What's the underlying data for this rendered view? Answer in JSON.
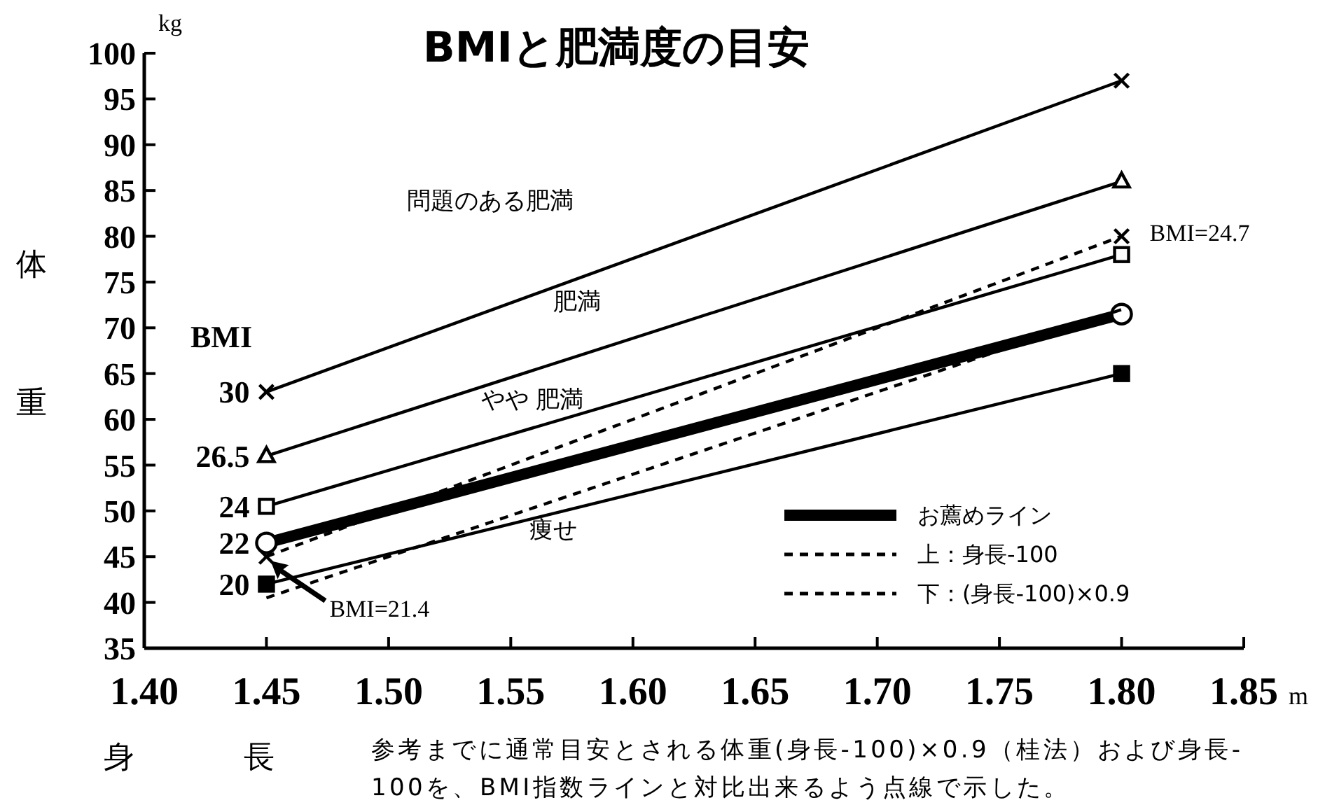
{
  "chart_data": {
    "type": "line",
    "title": "BMIと肥満度の目安",
    "xlabel": "身長",
    "ylabel": "体重",
    "x": [
      1.45,
      1.8
    ],
    "xlim": [
      1.4,
      1.85
    ],
    "xticks": [
      {
        "value": 1.4,
        "label": "1.40"
      },
      {
        "value": 1.45,
        "label": "1.45"
      },
      {
        "value": 1.5,
        "label": "1.50"
      },
      {
        "value": 1.55,
        "label": "1.55"
      },
      {
        "value": 1.6,
        "label": "1.60"
      },
      {
        "value": 1.65,
        "label": "1.65"
      },
      {
        "value": 1.7,
        "label": "1.70"
      },
      {
        "value": 1.75,
        "label": "1.75"
      },
      {
        "value": 1.8,
        "label": "1.80"
      },
      {
        "value": 1.85,
        "label": "1.85"
      }
    ],
    "ylim": [
      35,
      100
    ],
    "yticks": [
      35,
      40,
      45,
      50,
      55,
      60,
      65,
      70,
      75,
      80,
      85,
      90,
      95,
      100
    ],
    "grid": false,
    "legend": "bottom right",
    "series": [
      {
        "name": "30",
        "color": "#000000",
        "values": [
          63,
          97
        ],
        "marker": "cross",
        "line_style": "solid"
      },
      {
        "name": "26.5",
        "color": "#000000",
        "values": [
          56,
          86
        ],
        "marker": "triangle",
        "line_style": "solid"
      },
      {
        "name": "24",
        "color": "#000000",
        "values": [
          50.5,
          78
        ],
        "marker": "square",
        "line_style": "solid"
      },
      {
        "name": "お薦めライン",
        "color": "#000000",
        "values": [
          46.5,
          71.5
        ],
        "marker": "circle",
        "line_style": "solid"
      },
      {
        "name": "20",
        "color": "#000000",
        "values": [
          42,
          65
        ],
        "marker": "square",
        "line_style": "solid"
      },
      {
        "name": "上：身長-100",
        "color": "#000000",
        "values": [
          45,
          80
        ],
        "marker": "cross",
        "line_style": "dashed"
      },
      {
        "name": "下：(身長-100)×0.9",
        "color": "#000000",
        "values": [
          40.5,
          72
        ],
        "marker": "none",
        "line_style": "dashed"
      }
    ],
    "annotations": [
      "kg",
      "m",
      "BMI",
      "22",
      "問題のある肥満",
      "肥満",
      "やや 肥満",
      "痩せ",
      {
        "text": "BMI=24.7",
        "x": 1.8,
        "y": 80
      },
      "BMI=21.4",
      "参考までに通常目安とされる体重(身長-100)×0.9（桂法）および身長-100を、BMI指数ラインと対比出来るよう点線で示した。"
    ]
  }
}
